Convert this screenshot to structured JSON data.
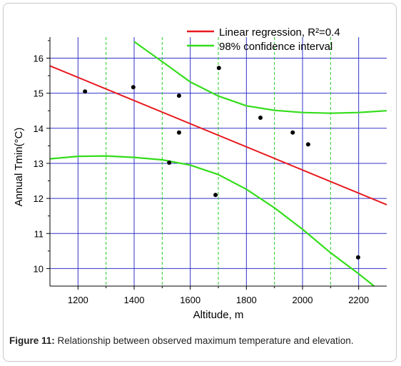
{
  "caption": {
    "label": "Figure 11:",
    "text": "Relationship between observed maximum temperature and elevation."
  },
  "chart_data": {
    "type": "scatter",
    "xlabel": "Altitude, m",
    "ylabel": "Annual Tmin(°C)",
    "xlim": [
      1100,
      2300
    ],
    "ylim": [
      9.5,
      16.6
    ],
    "xticks": [
      1200,
      1400,
      1600,
      1800,
      2000,
      2200
    ],
    "yticks": [
      10,
      11,
      12,
      13,
      14,
      15,
      16
    ],
    "grid": true,
    "legend_position": "top-right",
    "points": [
      {
        "x": 1225,
        "y": 15.05
      },
      {
        "x": 1397,
        "y": 15.17
      },
      {
        "x": 1525,
        "y": 13.02
      },
      {
        "x": 1560,
        "y": 14.93
      },
      {
        "x": 1560,
        "y": 13.88
      },
      {
        "x": 1690,
        "y": 12.1
      },
      {
        "x": 1702,
        "y": 15.72
      },
      {
        "x": 1850,
        "y": 14.3
      },
      {
        "x": 1965,
        "y": 13.88
      },
      {
        "x": 2020,
        "y": 13.54
      },
      {
        "x": 2198,
        "y": 10.32
      }
    ],
    "series": [
      {
        "name": "Linear regression, R²=0.4",
        "color": "#e8191e",
        "x": [
          1100,
          2300
        ],
        "y": [
          15.78,
          11.82
        ]
      },
      {
        "name": "98% confidence interval",
        "color": "#33dd1a",
        "upper": {
          "x": [
            1400,
            1500,
            1600,
            1700,
            1800,
            1900,
            2000,
            2100,
            2200,
            2300
          ],
          "y": [
            16.47,
            15.9,
            15.32,
            14.92,
            14.64,
            14.51,
            14.45,
            14.43,
            14.45,
            14.5
          ]
        },
        "lower": {
          "x": [
            1100,
            1200,
            1300,
            1400,
            1500,
            1600,
            1700,
            1800,
            1900,
            2000,
            2100,
            2200,
            2255
          ],
          "y": [
            13.13,
            13.2,
            13.21,
            13.17,
            13.1,
            12.95,
            12.68,
            12.26,
            11.73,
            11.12,
            10.45,
            9.85,
            9.5
          ]
        }
      }
    ]
  }
}
